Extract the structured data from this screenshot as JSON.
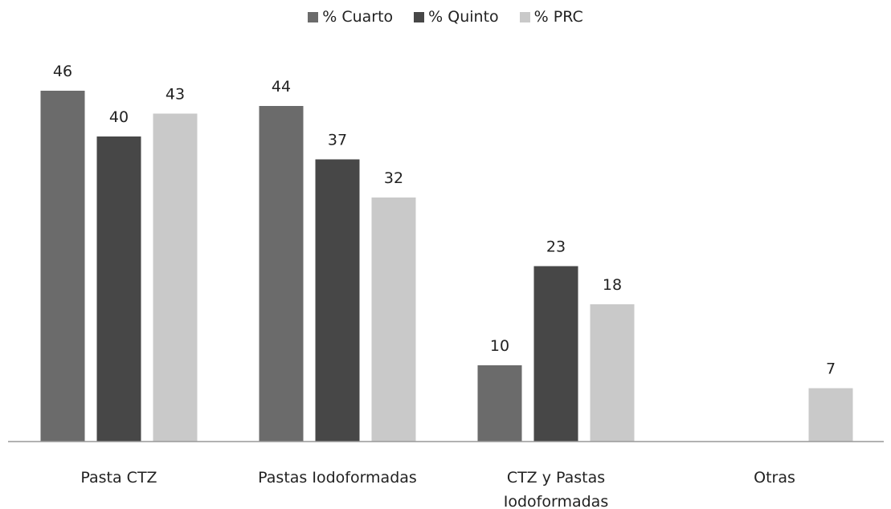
{
  "chart_data": {
    "type": "bar",
    "categories": [
      "Pasta CTZ",
      "Pastas Iodoformadas",
      "CTZ y Pastas Iodoformadas",
      "Otras"
    ],
    "series": [
      {
        "name": "% Cuarto",
        "color": "#6b6b6b",
        "values": [
          46,
          44,
          10,
          null
        ]
      },
      {
        "name": "% Quinto",
        "color": "#474747",
        "values": [
          40,
          37,
          23,
          null
        ]
      },
      {
        "name": "% PRC",
        "color": "#c9c9c9",
        "values": [
          43,
          32,
          18,
          7
        ]
      }
    ],
    "ylim": [
      0,
      50
    ],
    "legend": "top"
  }
}
